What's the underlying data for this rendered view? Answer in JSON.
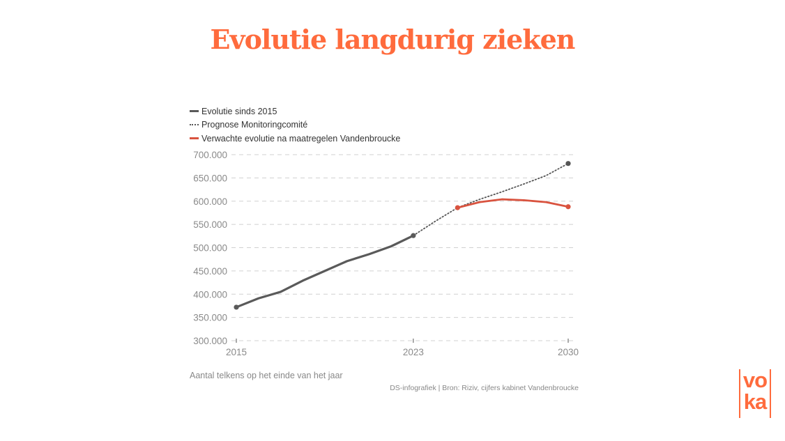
{
  "title": "Evolutie langdurig zieken",
  "legend": [
    {
      "label": "Evolutie sinds 2015",
      "style": "solid",
      "color": "#5a5a5a"
    },
    {
      "label": "Prognose Monitoringcomité",
      "style": "dotted",
      "color": "#555555"
    },
    {
      "label": "Verwachte evolutie na maatregelen Vandenbroucke",
      "style": "solid",
      "color": "#d9533f"
    }
  ],
  "note": "Aantal telkens op het einde van het jaar",
  "source": "DS-infografiek | Bron: Riziv, cijfers kabinet Vandenbroucke",
  "logo": {
    "line1": "vo",
    "line2": "ka"
  },
  "colors": {
    "accent": "#ff6b3d",
    "series_dark": "#5a5a5a",
    "series_red": "#d9533f",
    "grid": "#d0d0d0"
  },
  "chart_data": {
    "type": "line",
    "title": "Evolutie langdurig zieken",
    "xlabel": "",
    "ylabel": "",
    "ylim": [
      300000,
      700000
    ],
    "xlim": [
      2015,
      2030
    ],
    "yticks": [
      "300.000",
      "350.000",
      "400.000",
      "450.000",
      "500.000",
      "550.000",
      "600.000",
      "650.000",
      "700.000"
    ],
    "xticks": [
      "2015",
      "2023",
      "2030"
    ],
    "grid": true,
    "legend_position": "top-left",
    "series": [
      {
        "name": "Evolutie sinds 2015",
        "style": "solid",
        "x": [
          2015,
          2016,
          2017,
          2018,
          2019,
          2020,
          2021,
          2022,
          2023
        ],
        "values": [
          372000,
          391000,
          405000,
          429000,
          450000,
          471000,
          486000,
          503000,
          526000
        ]
      },
      {
        "name": "Prognose Monitoringcomité",
        "style": "dotted",
        "x": [
          2023,
          2024,
          2025,
          2026,
          2027,
          2028,
          2029,
          2030
        ],
        "values": [
          526000,
          557000,
          586000,
          604000,
          620000,
          637000,
          655000,
          681000
        ]
      },
      {
        "name": "Verwachte evolutie na maatregelen Vandenbroucke",
        "style": "solid",
        "x": [
          2025,
          2026,
          2027,
          2028,
          2029,
          2030
        ],
        "values": [
          586000,
          598000,
          604000,
          602000,
          598000,
          588000
        ]
      }
    ]
  }
}
